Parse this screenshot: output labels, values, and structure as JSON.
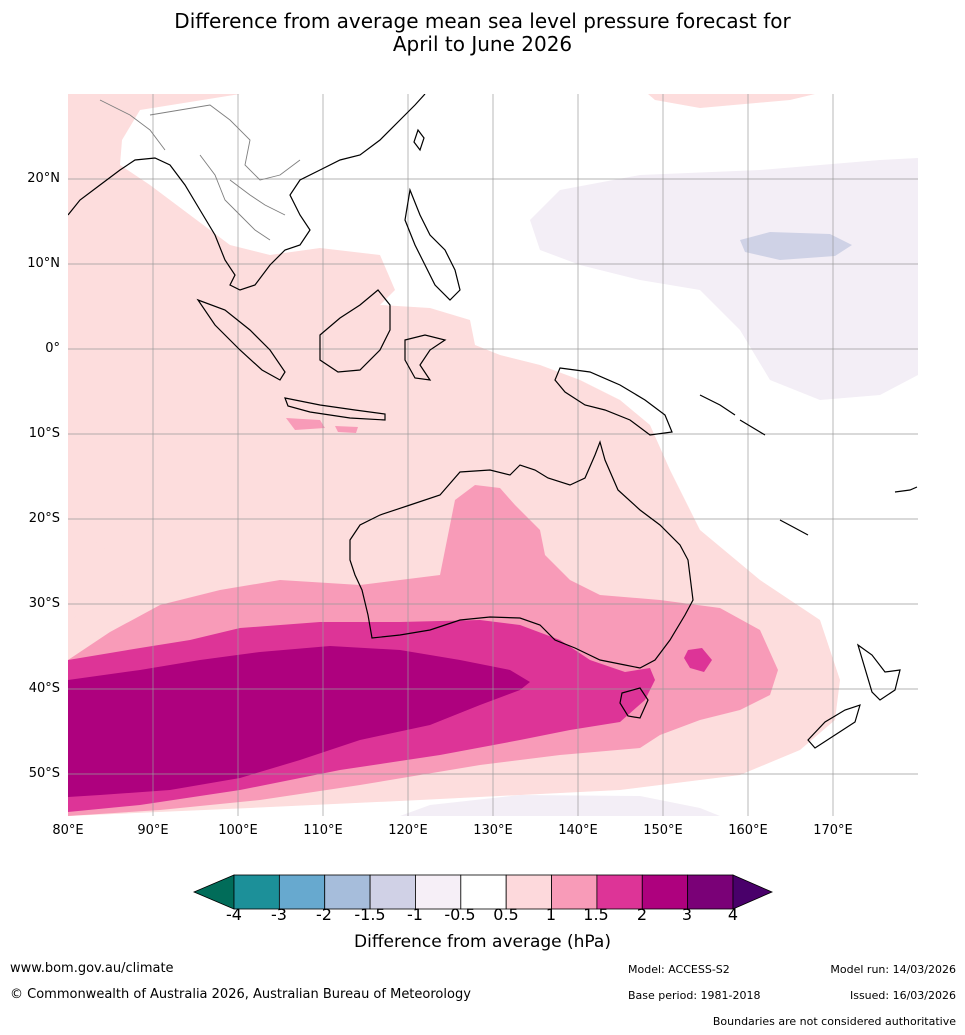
{
  "title": {
    "line1": "Difference from average mean sea level pressure forecast for",
    "line2": "April to June 2026"
  },
  "map": {
    "lat_labels": [
      "20°N",
      "10°N",
      "0°",
      "10°S",
      "20°S",
      "30°S",
      "40°S",
      "50°S"
    ],
    "lon_labels": [
      "80°E",
      "90°E",
      "100°E",
      "110°E",
      "120°E",
      "130°E",
      "140°E",
      "150°E",
      "160°E",
      "170°E"
    ],
    "colors": {
      "band_0_5_1": "#fddddd",
      "band_1_1_5": "#f89bb8",
      "band_1_5_2": "#dd3497",
      "band_2_3": "#ae017e",
      "band_neg_0_5_neg_1": "#f3eef6",
      "band_neg_1_neg_1_5": "#cfd2e6",
      "coast": "#000000",
      "borders": "#7f7f7f",
      "grid": "#9a9a9a"
    }
  },
  "colorbar": {
    "label": "Difference from average (hPa)",
    "ticks": [
      "-4",
      "-3",
      "-2",
      "-1.5",
      "-1",
      "-0.5",
      "0.5",
      "1",
      "1.5",
      "2",
      "3",
      "4"
    ],
    "colors": [
      "#016c59",
      "#1c9099",
      "#67a9cf",
      "#a6bddb",
      "#d0d1e6",
      "#f6eff7",
      "#ffffff",
      "#fdd9dc",
      "#f89bb8",
      "#dd3497",
      "#ae017e",
      "#7a0177",
      "#49006a"
    ]
  },
  "footer": {
    "website": "www.bom.gov.au/climate",
    "copyright": "© Commonwealth of Australia 2026, Australian Bureau of Meteorology",
    "model": "Model: ACCESS-S2",
    "base_period": "Base period: 1981-2018",
    "model_run": "Model run: 14/03/2026",
    "issued": "Issued: 16/03/2026",
    "disclaimer": "Boundaries are not considered authoritative"
  }
}
